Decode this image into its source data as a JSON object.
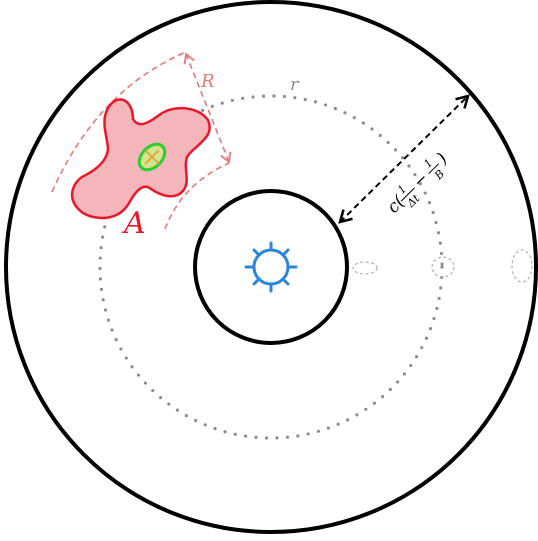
{
  "labels": {
    "region": "A",
    "radius": "r",
    "range": "R",
    "formula_prefix": "c(",
    "frac1_num": "1",
    "frac1_den": "Δt",
    "minus": "−",
    "frac2_num": "1",
    "frac2_den": "B",
    "formula_suffix": ")"
  },
  "colors": {
    "outline": "#000000",
    "orbit": "#8c8c8c",
    "region_fill": "#f4b6ba",
    "region_stroke": "#e8192c",
    "range_dashed": "#e87878",
    "target_stroke": "#2ecc2e",
    "target_fill": "#d4e48c",
    "target_cross": "#e8a03c",
    "sun": "#2a86d8",
    "faint_ellipse": "#b0b0b0"
  },
  "icons": {
    "center": "sun-icon"
  }
}
